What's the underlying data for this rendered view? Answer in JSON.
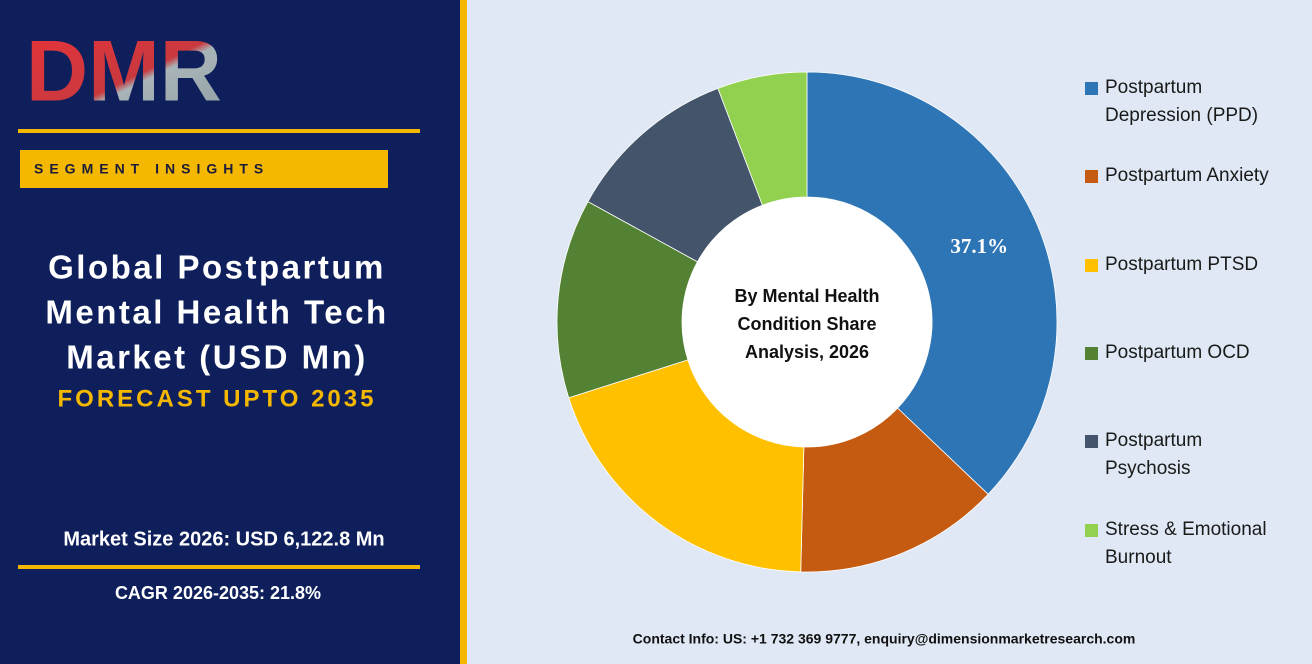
{
  "panel": {
    "logo": "DMR",
    "badge": "SEGMENT INSIGHTS",
    "title_lines": [
      "Global Postpartum",
      "Mental Health Tech",
      "Market (USD Mn)"
    ],
    "forecast": "FORECAST UPTO 2035",
    "market_size": "Market Size 2026: USD 6,122.8 Mn",
    "cagr": "CAGR 2026-2035: 21.8%"
  },
  "chart_data": {
    "type": "donut",
    "title": "By Mental Health Condition Share Analysis, 2026",
    "categories": [
      "Postpartum Depression (PPD)",
      "Postpartum Anxiety",
      "Postpartum PTSD",
      "Postpartum OCD",
      "Postpartum Psychosis",
      "Stress & Emotional Burnout"
    ],
    "values": [
      37.1,
      13.3,
      19.7,
      12.9,
      11.2,
      5.8
    ],
    "value_labels": [
      "37.1%",
      null,
      null,
      null,
      null,
      null
    ],
    "colors": [
      "#2e75b6",
      "#c55a11",
      "#ffc000",
      "#548235",
      "#44546a",
      "#92d050"
    ],
    "legend": "right"
  },
  "footer": {
    "contact": "Contact Info: US: +1 732 369 9777, enquiry@dimensionmarketresearch.com"
  }
}
